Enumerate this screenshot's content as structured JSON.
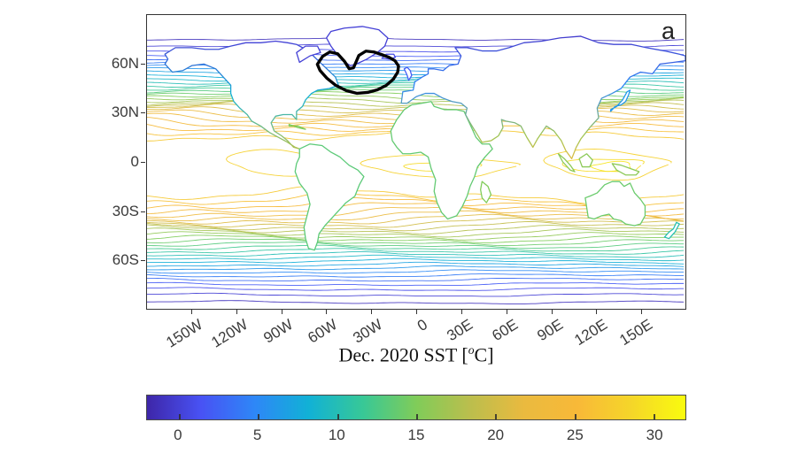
{
  "figure": {
    "panel_label": "a",
    "background_color": "#ffffff"
  },
  "chart_data": {
    "type": "contour",
    "title": "Dec. 2020 SST [°C]",
    "title_parts": {
      "prefix": "Dec. 2020 SST [",
      "degree": "o",
      "suffix": "C]"
    },
    "x_axis": {
      "tick_labels": [
        "150W",
        "120W",
        "90W",
        "60W",
        "30W",
        "0",
        "30E",
        "60E",
        "90E",
        "120E",
        "150E"
      ],
      "tick_lon_deg": [
        -150,
        -120,
        -90,
        -60,
        -30,
        0,
        30,
        60,
        90,
        120,
        150
      ],
      "range_lon_deg": [
        -180,
        180
      ],
      "label_rotation_deg": -32
    },
    "y_axis": {
      "tick_labels": [
        "60N",
        "30N",
        "0",
        "30S",
        "60S"
      ],
      "tick_lat_deg": [
        60,
        30,
        0,
        -30,
        -60
      ],
      "range_lat_deg": [
        -90,
        90
      ]
    },
    "colorbar": {
      "orientation": "horizontal",
      "tick_labels": [
        "0",
        "5",
        "10",
        "15",
        "20",
        "25",
        "30"
      ],
      "tick_values": [
        0,
        5,
        10,
        15,
        20,
        25,
        30
      ],
      "value_range": [
        -2,
        32
      ],
      "colormap": "parula",
      "stops": [
        "#3e26a8",
        "#4852f4",
        "#2e87f7",
        "#11b1d6",
        "#37c897",
        "#80cc59",
        "#bbbe4d",
        "#eaba3f",
        "#f8b938",
        "#f5d629",
        "#f9fb0e"
      ]
    },
    "contours": {
      "interval_c": 1,
      "min_level_c": -1,
      "max_level_c": 30,
      "zonal_model": {
        "sst_equator_max_c": 30,
        "sst_polar_min_c": -2
      }
    },
    "annotation_outline": {
      "description": "Thick black closed contour outlining the North Atlantic subpolar region",
      "color": "#000000",
      "approx_lon_range_deg": [
        -66,
        -10
      ],
      "approx_lat_range_deg": [
        44,
        67
      ]
    }
  }
}
